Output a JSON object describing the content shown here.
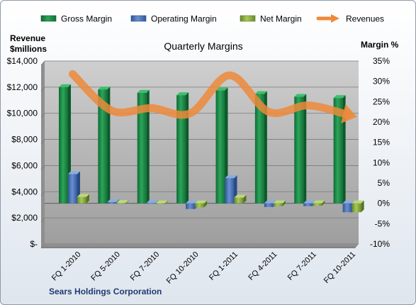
{
  "chart_data": {
    "type": "bar",
    "title": "Quarterly Margins",
    "footer_label": "Sears Holdings Corporation",
    "left_axis_label_line1": "Revenue",
    "left_axis_label_line2": "$millions",
    "right_axis_label": "Margin %",
    "categories": [
      "FQ 1-2010",
      "FQ 5-2010",
      "FQ 7-2010",
      "FQ 10-2010",
      "FQ 1-2011",
      "FQ 4-2011",
      "FQ 7-2011",
      "FQ 10-2011"
    ],
    "left_axis": {
      "range": [
        0,
        14000
      ],
      "ticks": [
        "$-",
        "$2,000",
        "$4,000",
        "$6,000",
        "$8,000",
        "$10,000",
        "$12,000",
        "$14,000"
      ]
    },
    "right_axis": {
      "range": [
        -10,
        35
      ],
      "ticks": [
        "-10%",
        "-5%",
        "0%",
        "5%",
        "10%",
        "15%",
        "20%",
        "25%",
        "30%",
        "35%"
      ]
    },
    "series": [
      {
        "name": "Gross Margin",
        "axis": "right",
        "kind": "bar",
        "color": "#1f8f4a",
        "values": [
          28.6,
          28.0,
          27.2,
          26.6,
          27.8,
          26.9,
          26.2,
          25.9
        ]
      },
      {
        "name": "Operating Margin",
        "axis": "right",
        "kind": "bar",
        "color": "#4a73b8",
        "values": [
          7.2,
          0.3,
          0.1,
          -1.4,
          6.2,
          -0.9,
          -0.7,
          -2.2
        ]
      },
      {
        "name": "Net Margin",
        "axis": "right",
        "kind": "bar",
        "color": "#8aae3a",
        "values": [
          1.6,
          0.1,
          -0.2,
          -1.0,
          1.4,
          -0.7,
          -0.6,
          -2.2
        ]
      },
      {
        "name": "Revenues",
        "axis": "left",
        "kind": "line",
        "color": "#ed8a3b",
        "values": [
          13000,
          10200,
          10400,
          10000,
          12900,
          10100,
          10600,
          9900
        ]
      }
    ],
    "grid": true,
    "legend": "top"
  }
}
